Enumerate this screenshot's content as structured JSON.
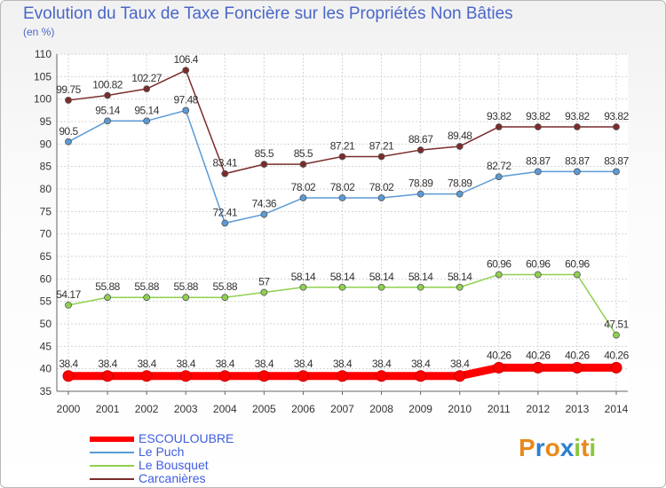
{
  "header": {
    "title": "Evolution du Taux de Taxe Foncière sur les Propriétés Non Bâties",
    "subtitle": "(en %)"
  },
  "chart_data": {
    "type": "line",
    "title": "Evolution du Taux de Taxe Foncière sur les Propriétés Non Bâties",
    "ylabel": "(en %)",
    "xlabel": "",
    "categories": [
      "2000",
      "2001",
      "2002",
      "2003",
      "2004",
      "2005",
      "2006",
      "2007",
      "2008",
      "2009",
      "2010",
      "2011",
      "2012",
      "2013",
      "2014"
    ],
    "ylim": [
      35,
      110
    ],
    "yticks": [
      35,
      40,
      45,
      50,
      55,
      60,
      65,
      70,
      75,
      80,
      85,
      90,
      95,
      100,
      105,
      110
    ],
    "grid": true,
    "series": [
      {
        "name": "ESCOULOUBRE",
        "color": "#ff0000",
        "values": [
          38.4,
          38.4,
          38.4,
          38.4,
          38.4,
          38.4,
          38.4,
          38.4,
          38.4,
          38.4,
          38.4,
          40.26,
          40.26,
          40.26,
          40.26
        ],
        "labels": [
          "38.4",
          "38.4",
          "38.4",
          "38.4",
          "38.4",
          "38.4",
          "38.4",
          "38.4",
          "38.4",
          "38.4",
          "38.4",
          "40.26",
          "40.26",
          "40.26",
          "40.26"
        ]
      },
      {
        "name": "Le Puch",
        "color": "#5b9bd5",
        "values": [
          90.5,
          95.14,
          95.14,
          97.48,
          72.41,
          74.36,
          78.02,
          78.02,
          78.02,
          78.89,
          78.89,
          82.72,
          83.87,
          83.87,
          83.87
        ],
        "labels": [
          "90.5",
          "95.14",
          "95.14",
          "97.48",
          "72.41",
          "74.36",
          "78.02",
          "78.02",
          "78.02",
          "78.89",
          "78.89",
          "82.72",
          "83.87",
          "83.87",
          "83.87"
        ]
      },
      {
        "name": "Le Bousquet",
        "color": "#8fd14f",
        "values": [
          54.17,
          55.88,
          55.88,
          55.88,
          55.88,
          57,
          58.14,
          58.14,
          58.14,
          58.14,
          58.14,
          60.96,
          60.96,
          60.96,
          47.51
        ],
        "labels": [
          "54.17",
          "55.88",
          "55.88",
          "55.88",
          "55.88",
          "57",
          "58.14",
          "58.14",
          "58.14",
          "58.14",
          "58.14",
          "60.96",
          "60.96",
          "60.96",
          "47.51"
        ]
      },
      {
        "name": "Carcanières",
        "color": "#7b2b2b",
        "values": [
          99.75,
          100.82,
          102.27,
          106.4,
          83.41,
          85.5,
          85.5,
          87.21,
          87.21,
          88.67,
          89.48,
          93.82,
          93.82,
          93.82,
          93.82
        ],
        "labels": [
          "99.75",
          "100.82",
          "102.27",
          "106.4",
          "83.41",
          "85.5",
          "85.5",
          "87.21",
          "87.21",
          "88.67",
          "89.48",
          "93.82",
          "93.82",
          "93.82",
          "93.82"
        ]
      }
    ],
    "legend_position": "bottom-left"
  },
  "legend": {
    "items": [
      {
        "label": "ESCOULOUBRE",
        "color": "#ff0000"
      },
      {
        "label": "Le Puch",
        "color": "#5b9bd5"
      },
      {
        "label": "Le Bousquet",
        "color": "#8fd14f"
      },
      {
        "label": "Carcanières",
        "color": "#7b2b2b"
      }
    ]
  },
  "logo": {
    "letters": [
      "P",
      "r",
      "o",
      "x",
      "i",
      "t",
      "i"
    ],
    "colors": [
      "#e8891a",
      "#2d7fd2",
      "#e8891a",
      "#2d7fd2",
      "#8cc63f",
      "#e8891a",
      "#8cc63f"
    ],
    "text": "Proxiti"
  }
}
